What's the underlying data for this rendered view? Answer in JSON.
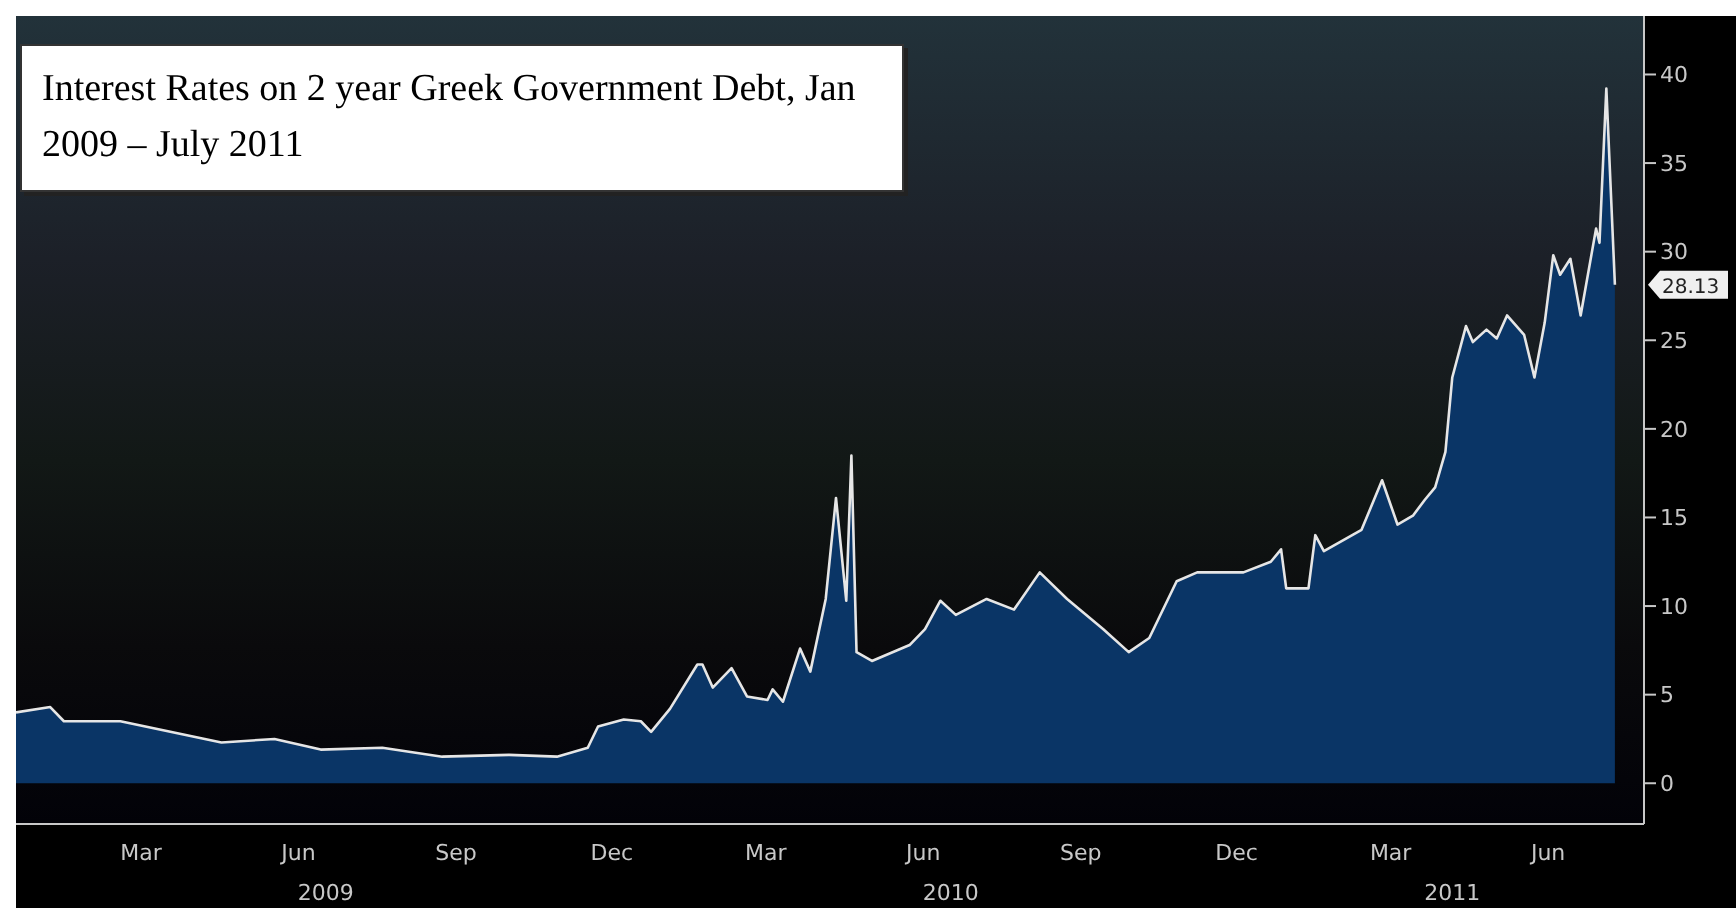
{
  "chart_data": {
    "type": "area",
    "title": "Interest Rates on 2 year Greek Government Debt, Jan 2009 – July 2011",
    "x": [
      "2009-01-01",
      "2009-01-21",
      "2009-01-29",
      "2009-03-03",
      "2009-05-01",
      "2009-06-01",
      "2009-06-28",
      "2009-08-03",
      "2009-09-07",
      "2009-10-16",
      "2009-11-13",
      "2009-12-01",
      "2009-12-07",
      "2009-12-22",
      "2010-01-01",
      "2010-01-07",
      "2010-01-18",
      "2010-02-03",
      "2010-02-06",
      "2010-02-12",
      "2010-02-23",
      "2010-03-04",
      "2010-03-16",
      "2010-03-19",
      "2010-03-25",
      "2010-04-04",
      "2010-04-10",
      "2010-04-19",
      "2010-04-25",
      "2010-05-01",
      "2010-05-04",
      "2010-05-07",
      "2010-05-16",
      "2010-06-07",
      "2010-06-16",
      "2010-06-25",
      "2010-07-04",
      "2010-07-22",
      "2010-08-07",
      "2010-08-22",
      "2010-09-07",
      "2010-09-28",
      "2010-10-13",
      "2010-10-25",
      "2010-11-10",
      "2010-11-22",
      "2010-12-19",
      "2011-01-04",
      "2011-01-10",
      "2011-01-13",
      "2011-01-26",
      "2011-01-30",
      "2011-02-04",
      "2011-02-26",
      "2011-03-10",
      "2011-03-19",
      "2011-03-28",
      "2011-04-04",
      "2011-04-10",
      "2011-04-16",
      "2011-04-20",
      "2011-04-28",
      "2011-05-02",
      "2011-05-10",
      "2011-05-16",
      "2011-05-22",
      "2011-06-01",
      "2011-06-07",
      "2011-06-13",
      "2011-06-18",
      "2011-06-22",
      "2011-06-28",
      "2011-07-04",
      "2011-07-13",
      "2011-07-15",
      "2011-07-19",
      "2011-07-24"
    ],
    "series": [
      {
        "color": "#0a3566",
        "values": [
          4.0,
          4.3,
          3.5,
          3.5,
          2.3,
          2.5,
          1.9,
          2.0,
          1.5,
          1.6,
          1.5,
          2.0,
          3.2,
          3.6,
          3.5,
          2.9,
          4.2,
          6.7,
          6.7,
          5.4,
          6.5,
          4.9,
          4.7,
          5.3,
          4.6,
          7.6,
          6.3,
          10.4,
          16.1,
          10.3,
          18.5,
          7.4,
          6.9,
          7.8,
          8.7,
          10.3,
          9.5,
          10.4,
          9.8,
          11.9,
          10.4,
          8.7,
          7.4,
          8.2,
          11.4,
          11.9,
          11.9,
          12.5,
          13.2,
          11.0,
          11.0,
          14.0,
          13.1,
          14.3,
          17.1,
          14.6,
          15.1,
          16.0,
          16.7,
          18.7,
          22.9,
          25.8,
          24.9,
          25.6,
          25.1,
          26.4,
          25.3,
          22.9,
          26.0,
          29.8,
          28.7,
          29.6,
          26.4,
          31.3,
          30.5,
          39.2,
          28.13
        ]
      }
    ],
    "xlim": [
      "2009-01-01",
      "2011-08-10"
    ],
    "xticks": [
      {
        "value": "2009-03-15",
        "label": "Mar"
      },
      {
        "value": "2009-06-15",
        "label": "Jun"
      },
      {
        "value": "2009-09-15",
        "label": "Sep"
      },
      {
        "value": "2009-12-15",
        "label": "Dec"
      },
      {
        "value": "2010-03-15",
        "label": "Mar"
      },
      {
        "value": "2010-06-15",
        "label": "Jun"
      },
      {
        "value": "2010-09-15",
        "label": "Sep"
      },
      {
        "value": "2010-12-15",
        "label": "Dec"
      },
      {
        "value": "2011-03-15",
        "label": "Mar"
      },
      {
        "value": "2011-06-15",
        "label": "Jun"
      }
    ],
    "x2lim": [
      "2009-01-01",
      "2011-08-10"
    ],
    "x2ticks": [
      {
        "value": "2009-07-01",
        "label": "2009"
      },
      {
        "value": "2010-07-01",
        "label": "2010"
      },
      {
        "value": "2011-04-20",
        "label": "2011"
      }
    ],
    "ylim": [
      -2.3,
      43.3
    ],
    "yticks": [
      0,
      5,
      10,
      15,
      20,
      25,
      30,
      35,
      40
    ],
    "annotations": [
      {
        "text": "28.13",
        "x": "2011-07-24",
        "y": 28.13
      }
    ]
  }
}
